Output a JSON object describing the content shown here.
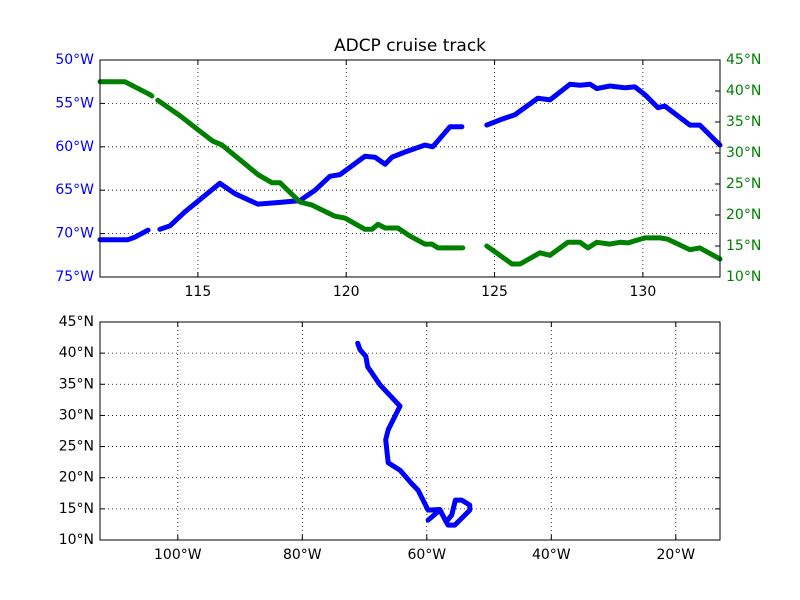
{
  "chart_data": [
    {
      "type": "line",
      "title": "ADCP cruise track",
      "xlim": [
        111.7,
        132.6
      ],
      "xticks": [
        115,
        120,
        125,
        130
      ],
      "ylim": [
        -75,
        -50
      ],
      "yticks": [
        {
          "value": -75,
          "label": "75°W"
        },
        {
          "value": -70,
          "label": "70°W"
        },
        {
          "value": -65,
          "label": "65°W"
        },
        {
          "value": -60,
          "label": "60°W"
        },
        {
          "value": -55,
          "label": "55°W"
        },
        {
          "value": -50,
          "label": "50°W"
        }
      ],
      "ytick_color": "#0000ff",
      "y2lim": [
        10,
        45
      ],
      "y2ticks": [
        {
          "value": 10,
          "label": "10°N"
        },
        {
          "value": 15,
          "label": "15°N"
        },
        {
          "value": 20,
          "label": "20°N"
        },
        {
          "value": 25,
          "label": "25°N"
        },
        {
          "value": 30,
          "label": "30°N"
        },
        {
          "value": 35,
          "label": "35°N"
        },
        {
          "value": 40,
          "label": "40°N"
        },
        {
          "value": 45,
          "label": "45°N"
        }
      ],
      "y2tick_color": "#008000",
      "grid": true,
      "series": [
        {
          "color": "#0000ff",
          "x": [
            111.7,
            112.64,
            112.88,
            113.32,
            113.5,
            113.72,
            114.06,
            114.56,
            115.24,
            115.74,
            116.25,
            117.02,
            117.77,
            118.44,
            118.95,
            119.45,
            119.79,
            120.63,
            120.97,
            121.31,
            121.54,
            121.98,
            122.65,
            122.92,
            123.5,
            123.9,
            124.3,
            124.74,
            125.18,
            125.69,
            126.46,
            126.87,
            127.54,
            127.88,
            128.22,
            128.45,
            128.89,
            129.4,
            129.73,
            130.07,
            130.51,
            130.74,
            131.59,
            131.92,
            132.6
          ],
          "values": [
            -70.7,
            -70.7,
            -70.4,
            -69.6,
            null,
            -69.5,
            -69.1,
            -67.5,
            -65.6,
            -64.2,
            -65.4,
            -66.6,
            -66.4,
            -66.2,
            -65.0,
            -63.4,
            -63.2,
            -61.1,
            -61.2,
            -62.0,
            -61.2,
            -60.6,
            -59.8,
            -60.0,
            -57.7,
            -57.7,
            null,
            -57.5,
            -56.9,
            -56.3,
            -54.4,
            -54.6,
            -52.8,
            -52.9,
            -52.8,
            -53.3,
            -53.0,
            -53.2,
            -53.1,
            -54.0,
            -55.5,
            -55.3,
            -57.5,
            -57.5,
            -59.8
          ]
        },
        {
          "color": "#008000",
          "axis": "y2",
          "x": [
            111.7,
            112.54,
            113.39,
            113.45,
            113.55,
            113.65,
            114.4,
            115.07,
            115.51,
            115.81,
            116.42,
            117.03,
            117.5,
            117.77,
            118.44,
            118.85,
            119.62,
            119.96,
            120.63,
            120.87,
            121.07,
            121.31,
            121.74,
            122.15,
            122.65,
            122.89,
            123.09,
            123.93,
            124.3,
            124.74,
            125.18,
            125.59,
            125.86,
            126.53,
            126.87,
            127.47,
            127.88,
            128.15,
            128.45,
            128.89,
            129.23,
            129.5,
            130.07,
            130.57,
            130.84,
            131.59,
            131.92,
            132.6
          ],
          "values": [
            41.5,
            41.5,
            39.4,
            39.2,
            null,
            38.5,
            36.0,
            33.5,
            31.9,
            31.3,
            28.9,
            26.5,
            25.2,
            25.2,
            22.1,
            21.6,
            19.8,
            19.5,
            17.7,
            17.7,
            18.5,
            17.9,
            17.9,
            16.6,
            15.3,
            15.3,
            14.7,
            14.7,
            null,
            15.0,
            13.5,
            12.1,
            12.1,
            13.9,
            13.5,
            15.6,
            15.6,
            14.7,
            15.6,
            15.3,
            15.6,
            15.5,
            16.3,
            16.3,
            16.1,
            14.4,
            14.7,
            12.9
          ]
        }
      ]
    },
    {
      "type": "line",
      "xlim": [
        -112.5,
        -12.9
      ],
      "xticks": [
        {
          "value": -100,
          "label": "100°W"
        },
        {
          "value": -80,
          "label": "80°W"
        },
        {
          "value": -60,
          "label": "60°W"
        },
        {
          "value": -40,
          "label": "40°W"
        },
        {
          "value": -20,
          "label": "20°W"
        }
      ],
      "ylim": [
        10,
        45
      ],
      "yticks": [
        {
          "value": 10,
          "label": "10°N"
        },
        {
          "value": 15,
          "label": "15°N"
        },
        {
          "value": 20,
          "label": "20°N"
        },
        {
          "value": 25,
          "label": "25°N"
        },
        {
          "value": 30,
          "label": "30°N"
        },
        {
          "value": 35,
          "label": "35°N"
        },
        {
          "value": 40,
          "label": "40°N"
        },
        {
          "value": 45,
          "label": "45°N"
        }
      ],
      "grid": true,
      "series": [
        {
          "color": "#0000ff",
          "x": [
            -71.1,
            -70.7,
            -69.8,
            -69.5,
            -67.5,
            -64.6,
            -64.3,
            -66.2,
            -66.6,
            -66.2,
            -64.3,
            -62.4,
            -61.4,
            -59.8,
            -57.9,
            -56.9,
            -56.0,
            -55.4,
            -54.4,
            -53.1,
            -53.1,
            -55.5,
            -56.6,
            -57.9,
            -59.8
          ],
          "values": [
            41.6,
            40.5,
            39.5,
            37.8,
            34.9,
            31.8,
            31.5,
            27.7,
            26.1,
            22.4,
            21.2,
            19.0,
            18.0,
            14.8,
            14.9,
            12.9,
            14.0,
            16.4,
            16.4,
            15.6,
            14.8,
            12.4,
            12.4,
            14.8,
            13.2
          ]
        }
      ]
    }
  ]
}
